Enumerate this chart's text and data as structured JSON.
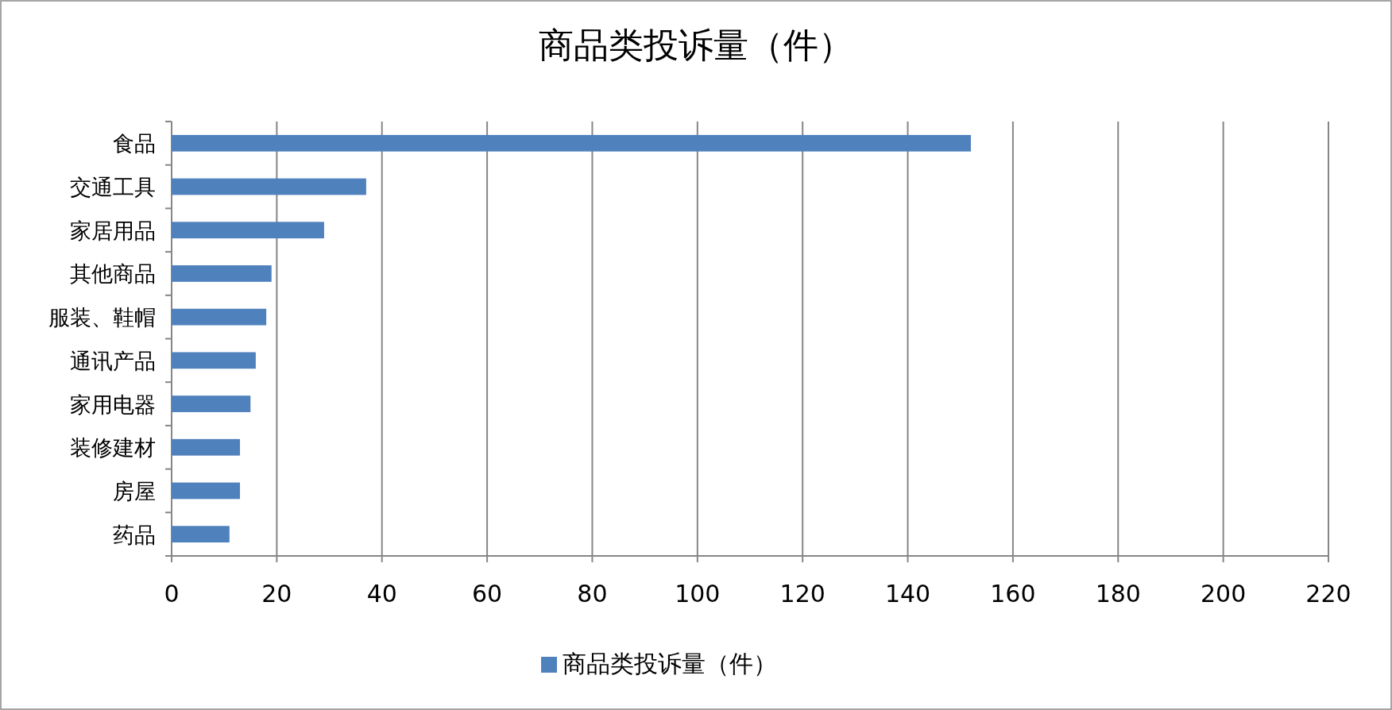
{
  "chart_data": {
    "type": "bar",
    "orientation": "horizontal",
    "title": "商品类投诉量（件）",
    "categories": [
      "食品",
      "交通工具",
      "家居用品",
      "其他商品",
      "服装、鞋帽",
      "通讯产品",
      "家用电器",
      "装修建材",
      "房屋",
      "药品"
    ],
    "series": [
      {
        "name": "商品类投诉量（件）",
        "color": "#4f81bd",
        "values": [
          152,
          37,
          29,
          19,
          18,
          16,
          15,
          13,
          13,
          11
        ]
      }
    ],
    "xlim": [
      0,
      220
    ],
    "xticks": [
      0,
      20,
      40,
      60,
      80,
      100,
      120,
      140,
      160,
      180,
      200,
      220
    ],
    "grid": "x",
    "legend": "bottom"
  }
}
